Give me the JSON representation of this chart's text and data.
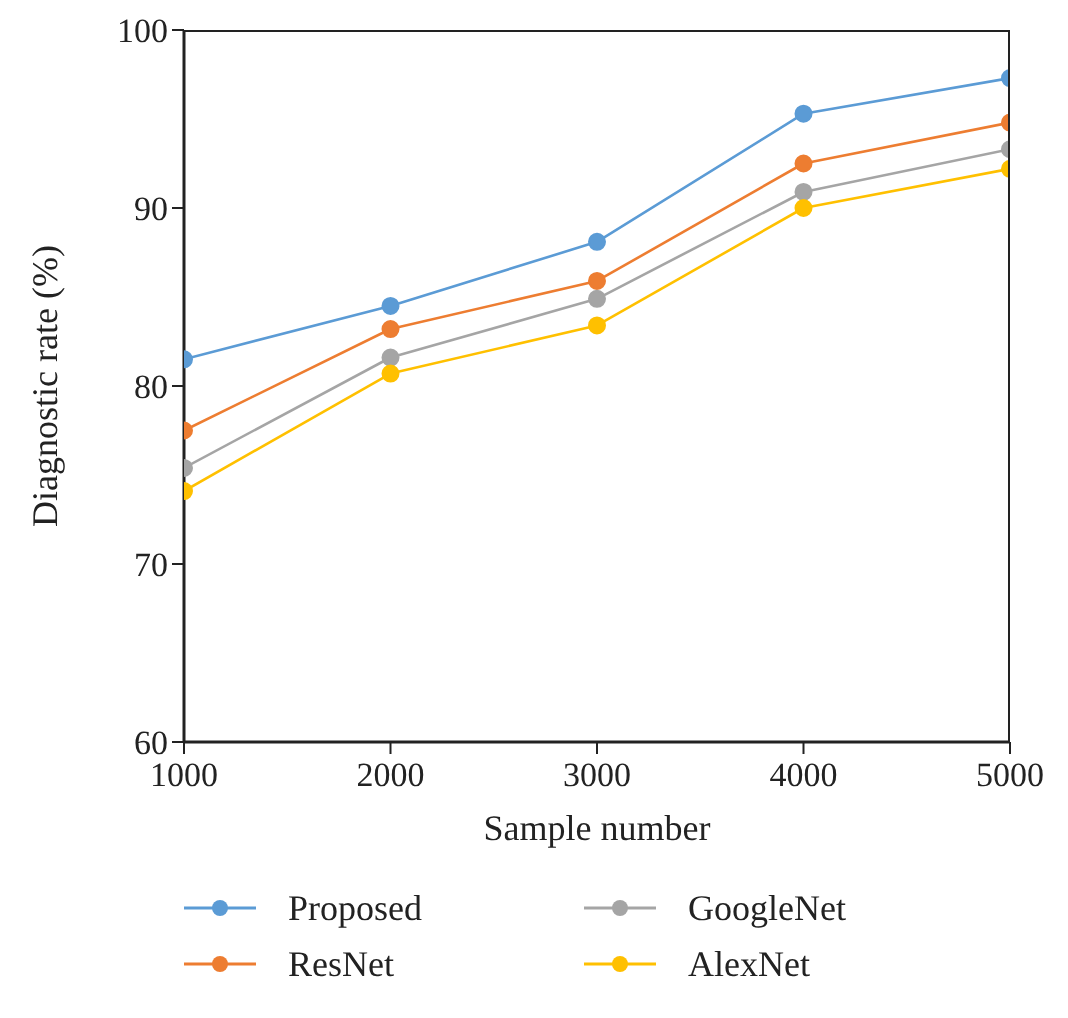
{
  "chart_data": {
    "type": "line",
    "xlabel": "Sample number",
    "ylabel": "Diagnostic rate (%)",
    "x": [
      1000,
      2000,
      3000,
      4000,
      5000
    ],
    "xlim": [
      1000,
      5000
    ],
    "xticks": [
      1000,
      2000,
      3000,
      4000,
      5000
    ],
    "ylim": [
      60,
      100
    ],
    "yticks": [
      60,
      70,
      80,
      90,
      100
    ],
    "grid": false,
    "legend": "bottom",
    "marker": "circle",
    "line_style": "solid",
    "series": [
      {
        "name": "Proposed",
        "color": "#5b9bd5",
        "values": [
          81.5,
          84.5,
          88.1,
          95.3,
          97.3
        ]
      },
      {
        "name": "ResNet",
        "color": "#ed7d31",
        "values": [
          77.5,
          83.2,
          85.9,
          92.5,
          94.8
        ]
      },
      {
        "name": "GoogleNet",
        "color": "#a5a5a5",
        "values": [
          75.4,
          81.6,
          84.9,
          90.9,
          93.3
        ]
      },
      {
        "name": "AlexNet",
        "color": "#ffc000",
        "values": [
          74.1,
          80.7,
          83.4,
          90.0,
          92.2
        ]
      }
    ]
  }
}
